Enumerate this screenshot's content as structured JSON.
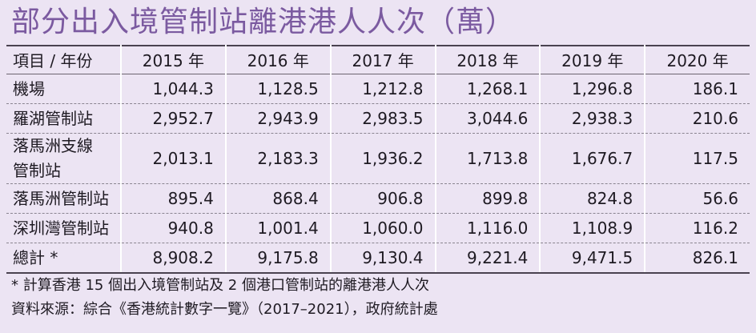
{
  "title": "部分出入境管制站離港港人人次（萬）",
  "table": {
    "header": [
      "項目 / 年份",
      "2015 年",
      "2016 年",
      "2017 年",
      "2018 年",
      "2019 年",
      "2020 年"
    ],
    "rows": [
      {
        "label": "機場",
        "values": [
          "1,044.3",
          "1,128.5",
          "1,212.8",
          "1,268.1",
          "1,296.8",
          "186.1"
        ]
      },
      {
        "label": "羅湖管制站",
        "values": [
          "2,952.7",
          "2,943.9",
          "2,983.5",
          "3,044.6",
          "2,938.3",
          "210.6"
        ]
      },
      {
        "label_line1": "落馬洲支線",
        "label_line2": "管制站",
        "values": [
          "2,013.1",
          "2,183.3",
          "1,936.2",
          "1,713.8",
          "1,676.7",
          "117.5"
        ]
      },
      {
        "label": "落馬洲管制站",
        "values": [
          "895.4",
          "868.4",
          "906.8",
          "899.8",
          "824.8",
          "56.6"
        ]
      },
      {
        "label": "深圳灣管制站",
        "values": [
          "940.8",
          "1,001.4",
          "1,060.0",
          "1,116.0",
          "1,108.9",
          "116.2"
        ]
      },
      {
        "label": "總計 *",
        "values": [
          "8,908.2",
          "9,175.8",
          "9,130.4",
          "9,221.4",
          "9,471.5",
          "826.1"
        ]
      }
    ]
  },
  "notes": {
    "footnote": "* 計算香港 15 個出入境管制站及 2 個港口管制站的離港港人人次",
    "source": "資料來源：綜合《香港統計數字一覽》（2017–2021），政府統計處"
  },
  "colors": {
    "background": "#ece4f3",
    "title": "#7b5aa0"
  }
}
